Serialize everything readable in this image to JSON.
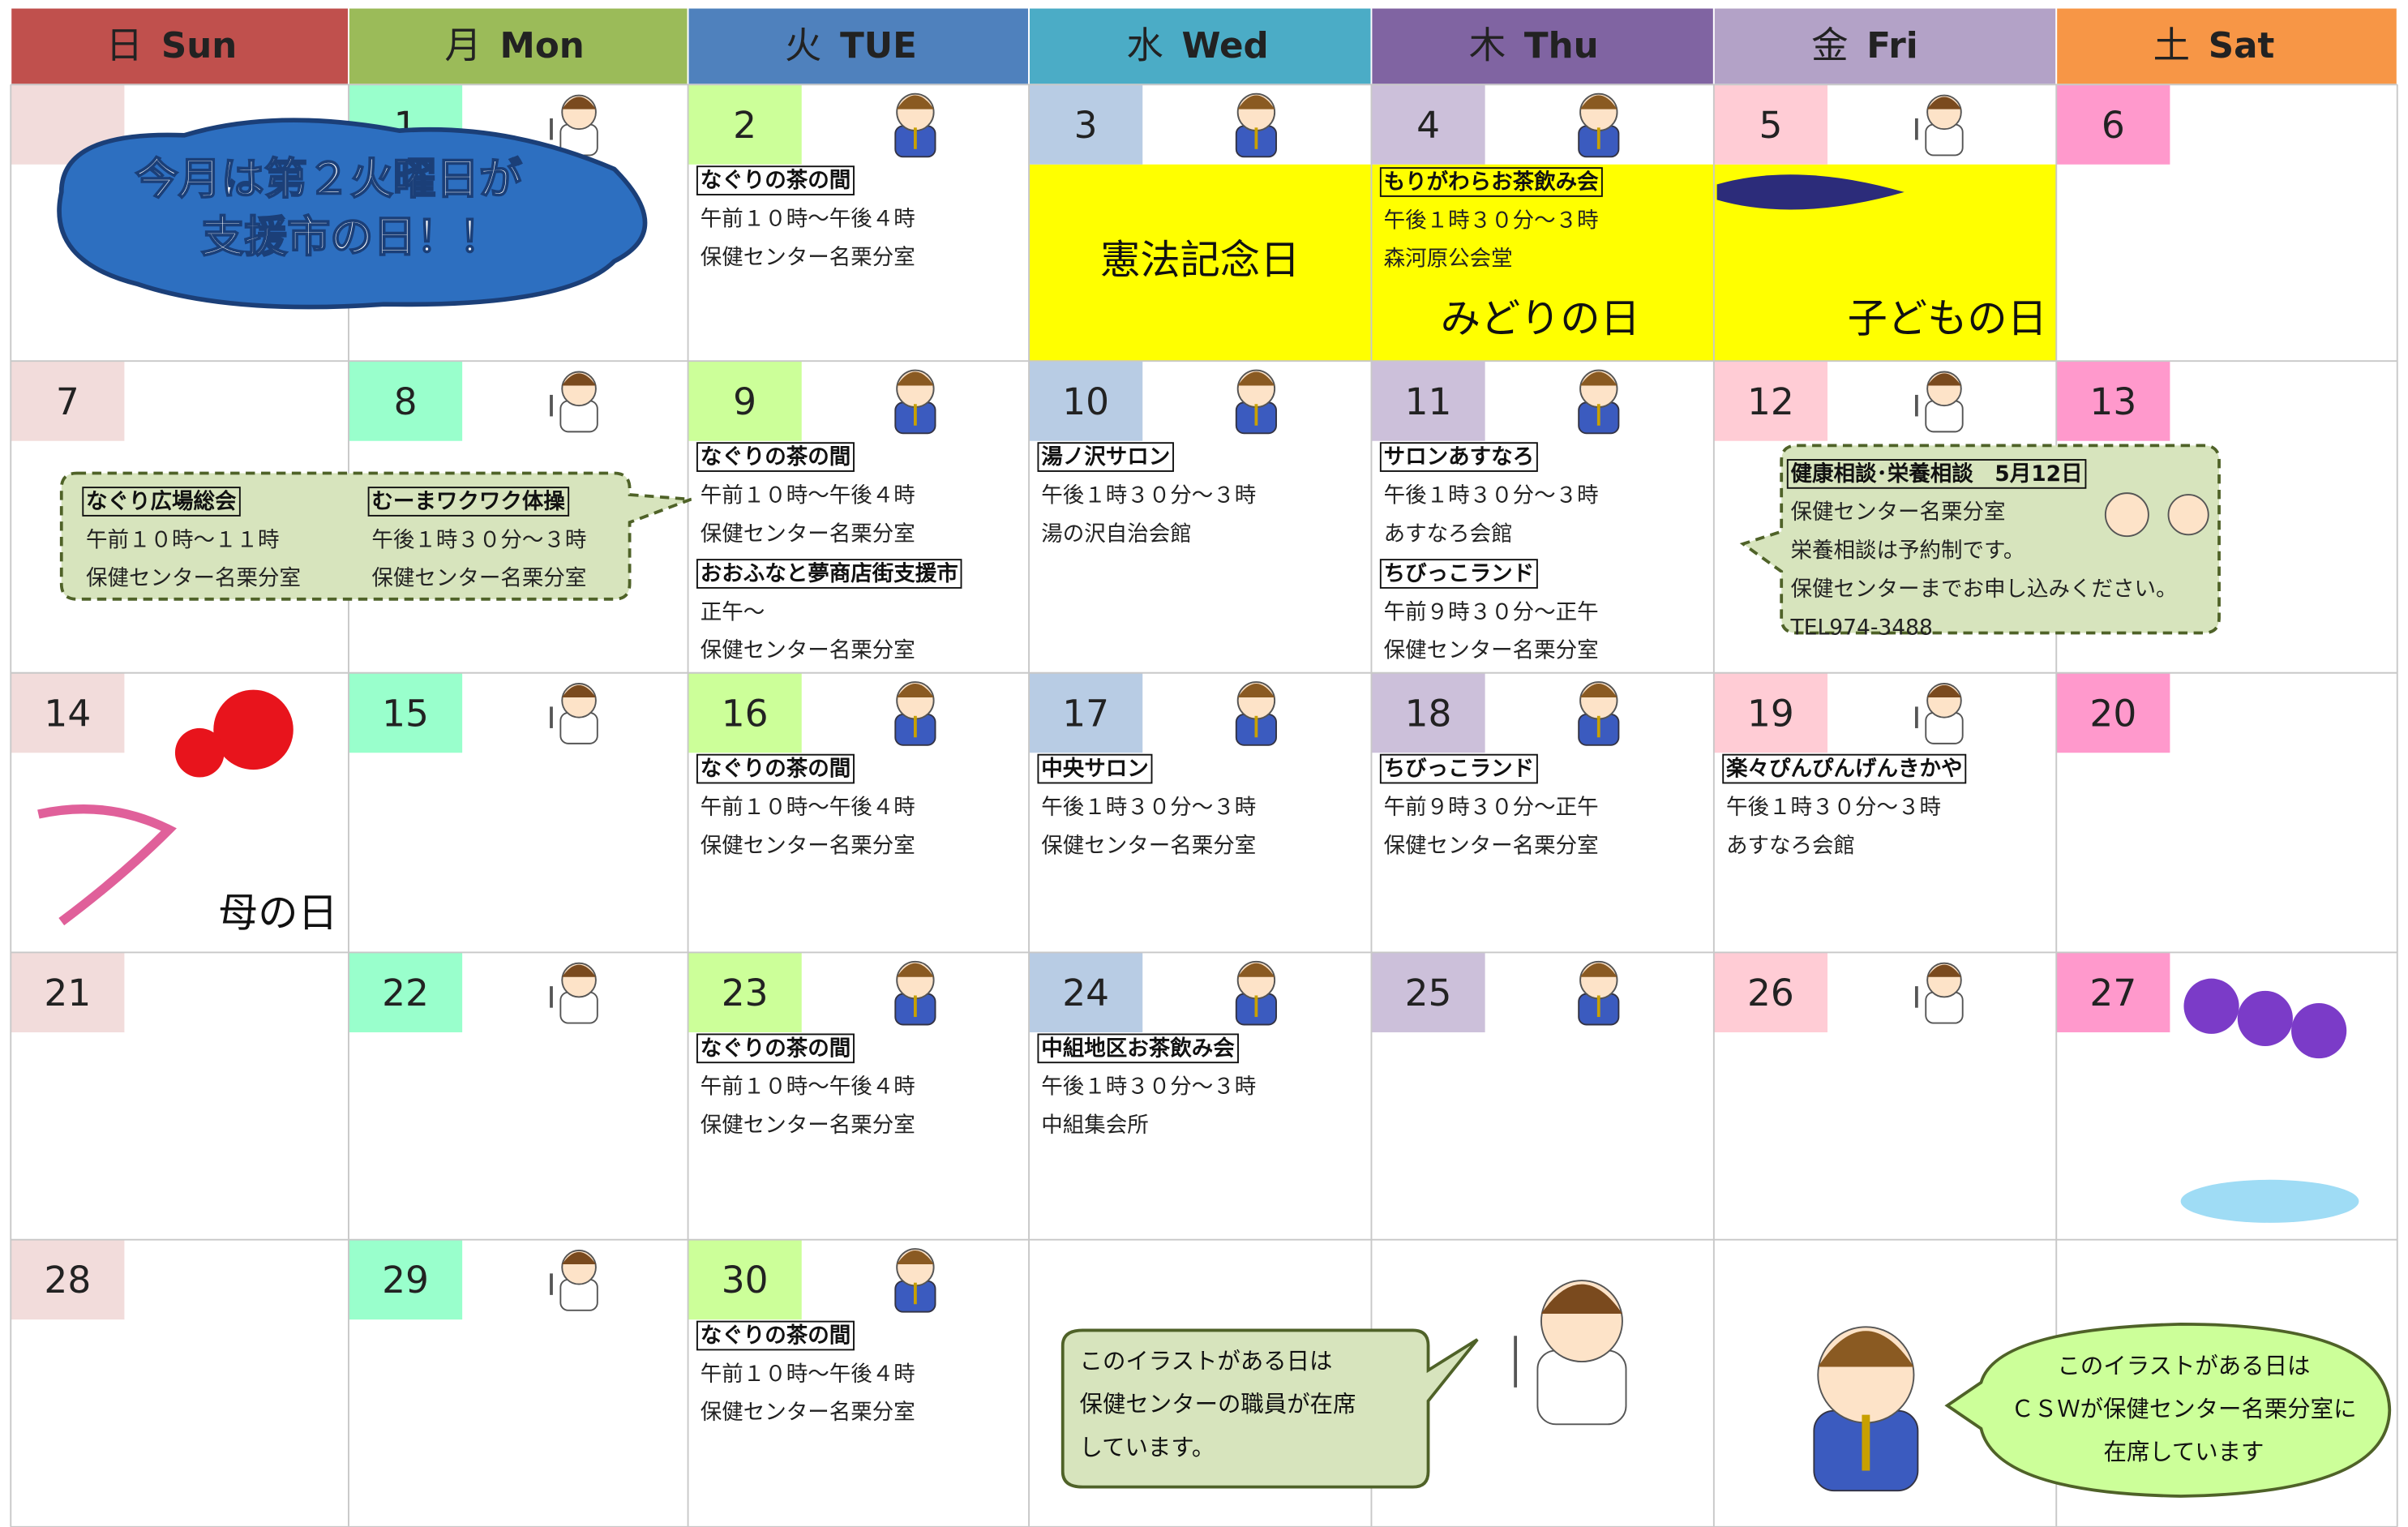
{
  "weekdays": [
    {
      "kanji": "日",
      "name": "Sun"
    },
    {
      "kanji": "月",
      "name": "Mon"
    },
    {
      "kanji": "火",
      "name": "TUE"
    },
    {
      "kanji": "水",
      "name": "Wed"
    },
    {
      "kanji": "木",
      "name": "Thu"
    },
    {
      "kanji": "金",
      "name": "Fri"
    },
    {
      "kanji": "土",
      "name": "Sat"
    }
  ],
  "weeks": [
    {
      "days": [
        null,
        {
          "day": 1
        },
        {
          "day": 2,
          "events": [
            {
              "title": "なぐりの茶の間",
              "lines": [
                "午前１０時～午後４時",
                "保健センター名栗分室"
              ]
            }
          ]
        },
        {
          "day": 3,
          "holiday": "憲法記念日"
        },
        {
          "day": 4,
          "events": [
            {
              "title": "もりがわらお茶飲み会",
              "lines": [
                "午後１時３０分～３時",
                "森河原公会堂"
              ]
            }
          ],
          "holiday": "みどりの日"
        },
        {
          "day": 5,
          "holiday": "子どもの日"
        },
        {
          "day": 6
        }
      ]
    },
    {
      "days": [
        {
          "day": 7
        },
        {
          "day": 8
        },
        {
          "day": 9,
          "events": [
            {
              "title": "なぐりの茶の間",
              "lines": [
                "午前１０時～午後４時",
                "保健センター名栗分室"
              ]
            },
            {
              "title": "おおふなと夢商店街支援市",
              "lines": [
                "正午～",
                "保健センター名栗分室"
              ]
            }
          ]
        },
        {
          "day": 10,
          "events": [
            {
              "title": "湯ノ沢サロン",
              "lines": [
                "午後１時３０分～３時",
                "湯の沢自治会館"
              ]
            }
          ]
        },
        {
          "day": 11,
          "events": [
            {
              "title": "サロンあすなろ",
              "lines": [
                "午後１時３０分～３時",
                "あすなろ会館"
              ]
            },
            {
              "title": "ちびっこランド",
              "lines": [
                "午前９時３０分～正午",
                "保健センター名栗分室"
              ]
            }
          ]
        },
        {
          "day": 12
        },
        {
          "day": 13
        }
      ]
    },
    {
      "days": [
        {
          "day": 14,
          "holiday": "母の日"
        },
        {
          "day": 15
        },
        {
          "day": 16,
          "events": [
            {
              "title": "なぐりの茶の間",
              "lines": [
                "午前１０時～午後４時",
                "保健センター名栗分室"
              ]
            }
          ]
        },
        {
          "day": 17,
          "events": [
            {
              "title": "中央サロン",
              "lines": [
                "午後１時３０分～３時",
                "保健センター名栗分室"
              ]
            }
          ]
        },
        {
          "day": 18,
          "events": [
            {
              "title": "ちびっこランド",
              "lines": [
                "午前９時３０分～正午",
                "保健センター名栗分室"
              ]
            }
          ]
        },
        {
          "day": 19,
          "events": [
            {
              "title": "楽々ぴんぴんげんきかや",
              "lines": [
                "午後１時３０分～３時",
                "あすなろ会館"
              ]
            }
          ]
        },
        {
          "day": 20
        }
      ]
    },
    {
      "days": [
        {
          "day": 21
        },
        {
          "day": 22
        },
        {
          "day": 23,
          "events": [
            {
              "title": "なぐりの茶の間",
              "lines": [
                "午前１０時～午後４時",
                "保健センター名栗分室"
              ]
            }
          ]
        },
        {
          "day": 24,
          "events": [
            {
              "title": "中組地区お茶飲み会",
              "lines": [
                "午後１時３０分～３時",
                "中組集会所"
              ]
            }
          ]
        },
        {
          "day": 25
        },
        {
          "day": 26
        },
        {
          "day": 27
        }
      ]
    },
    {
      "days": [
        {
          "day": 28
        },
        {
          "day": 29
        },
        {
          "day": 30,
          "events": [
            {
              "title": "なぐりの茶の間",
              "lines": [
                "午前１０時～午後４時",
                "保健センター名栗分室"
              ]
            }
          ]
        },
        null,
        null,
        null,
        null
      ]
    }
  ],
  "banner": {
    "lines": [
      "今月は第２火曜日が",
      "支援市の日！！"
    ]
  },
  "week2_callout": {
    "events": [
      {
        "title": "なぐり広場総会",
        "lines": [
          "午前１０時～１１時",
          "保健センター名栗分室"
        ]
      },
      {
        "title": "むーまワクワク体操",
        "lines": [
          "午後１時３０分～３時",
          "保健センター名栗分室"
        ]
      }
    ]
  },
  "day12_callout": {
    "title": "健康相談･栄養相談　5月12日",
    "lines": [
      "保健センター名栗分室",
      "栄養相談は予約制です。",
      "保健センターまでお申し込みください。",
      "TEL974-3488"
    ]
  },
  "legend_staff": {
    "lines": [
      "このイラストがある日は",
      "保健センターの職員が在席",
      "しています。"
    ]
  },
  "legend_csw": {
    "lines": [
      "このイラストがある日は",
      "ＣＳＷが保健センター名栗分室に",
      "在席しています"
    ]
  }
}
